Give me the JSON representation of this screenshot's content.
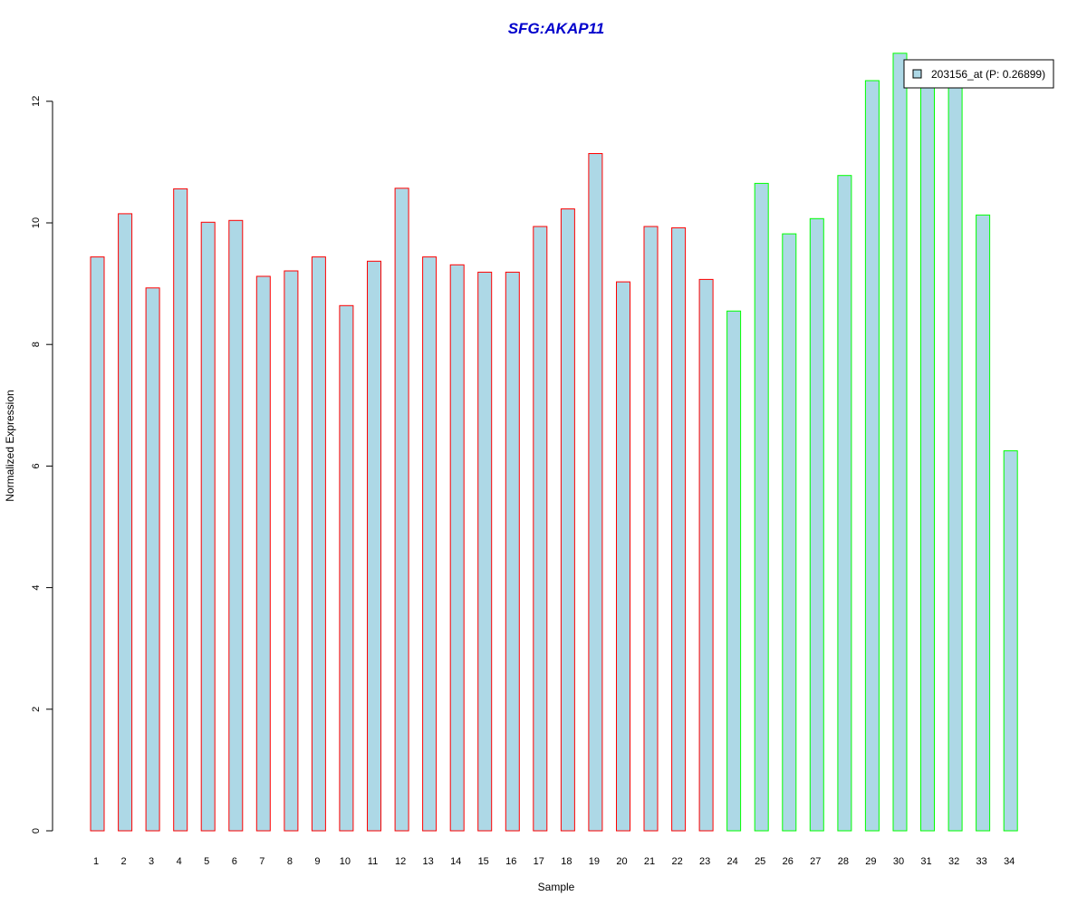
{
  "chart_data": {
    "type": "bar",
    "title": "SFG:AKAP11",
    "xlabel": "Sample",
    "ylabel": "Normalized Expression",
    "ylim": [
      0,
      12.8
    ],
    "yticks": [
      0,
      2,
      4,
      6,
      8,
      10,
      12
    ],
    "categories": [
      "1",
      "2",
      "3",
      "4",
      "5",
      "6",
      "7",
      "8",
      "9",
      "10",
      "11",
      "12",
      "13",
      "14",
      "15",
      "16",
      "17",
      "18",
      "19",
      "20",
      "21",
      "22",
      "23",
      "24",
      "25",
      "26",
      "27",
      "28",
      "29",
      "30",
      "31",
      "32",
      "33",
      "34"
    ],
    "series": [
      {
        "name": "203156_at (P: 0.26899)",
        "values": [
          9.44,
          10.15,
          8.93,
          10.56,
          10.01,
          10.04,
          9.12,
          9.21,
          9.44,
          8.64,
          9.37,
          10.57,
          9.44,
          9.31,
          9.19,
          9.19,
          9.94,
          10.23,
          11.14,
          9.03,
          9.94,
          9.92,
          9.07,
          8.55,
          10.65,
          9.82,
          10.07,
          10.78,
          12.34,
          12.79,
          12.3,
          12.3,
          10.13,
          6.25
        ]
      }
    ],
    "group_outline": [
      "red",
      "red",
      "red",
      "red",
      "red",
      "red",
      "red",
      "red",
      "red",
      "red",
      "red",
      "red",
      "red",
      "red",
      "red",
      "red",
      "red",
      "red",
      "red",
      "red",
      "red",
      "red",
      "red",
      "green",
      "green",
      "green",
      "green",
      "green",
      "green",
      "green",
      "green",
      "green",
      "green",
      "green"
    ],
    "colors": {
      "fill": "#add8e6",
      "outline_group1": "#ff0000",
      "outline_group2": "#00ff00",
      "title": "#0000cc"
    },
    "legend": {
      "label": "203156_at (P: 0.26899)",
      "position": "top-right"
    },
    "grid": false
  }
}
